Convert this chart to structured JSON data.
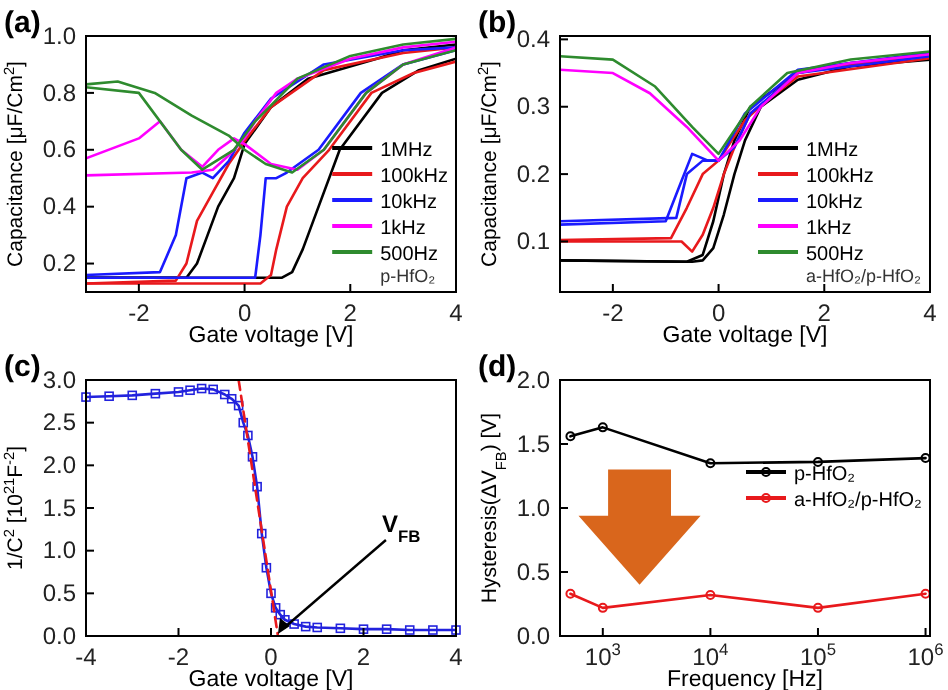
{
  "chart_data": [
    {
      "type": "line",
      "title": "(a)",
      "xlabel": "Gate voltage [V]",
      "ylabel": "Capacitance [μF/Cm$^{2}$]",
      "xlim": [
        -3,
        4
      ],
      "xticks": [
        -2,
        0,
        2,
        4
      ],
      "ylim": [
        0.1,
        1.0
      ],
      "yticks": [
        {
          "value": 0.2,
          "label": "0.2"
        },
        {
          "value": 0.4,
          "label": "0.4"
        },
        {
          "value": 0.6,
          "label": "0.6"
        },
        {
          "value": 0.8,
          "label": "0.8"
        },
        {
          "value": 1.0,
          "label": "1.0"
        }
      ],
      "legend": "bottom right",
      "annotations": [
        "p-HfO₂"
      ],
      "series": [
        {
          "name": "1MHz",
          "color": "#000000",
          "x": [
            -3,
            -1,
            0.7,
            0.9,
            1.1,
            1.4,
            1.8,
            2.6,
            3.3,
            4
          ],
          "values": [
            0.15,
            0.15,
            0.15,
            0.17,
            0.25,
            0.4,
            0.6,
            0.8,
            0.88,
            0.92
          ]
        },
        {
          "color": "#000000",
          "x": [
            -3,
            -1.1,
            -0.9,
            -0.7,
            -0.5,
            -0.2,
            0,
            0.5,
            1.2,
            2.5,
            3,
            4
          ],
          "values": [
            0.15,
            0.15,
            0.2,
            0.3,
            0.4,
            0.5,
            0.62,
            0.75,
            0.85,
            0.92,
            0.95,
            0.97
          ]
        },
        {
          "name": "100kHz",
          "color": "#e8191c",
          "x": [
            -3,
            0.3,
            0.5,
            0.6,
            0.8,
            1.1,
            1.6,
            2.4,
            3.2,
            4
          ],
          "values": [
            0.13,
            0.13,
            0.16,
            0.25,
            0.4,
            0.5,
            0.6,
            0.8,
            0.87,
            0.91
          ]
        },
        {
          "color": "#e8191c",
          "x": [
            -3,
            -1.3,
            -1.1,
            -0.9,
            -0.6,
            -0.3,
            0,
            0.5,
            1.5,
            3,
            4
          ],
          "values": [
            0.13,
            0.14,
            0.2,
            0.35,
            0.45,
            0.55,
            0.63,
            0.75,
            0.88,
            0.94,
            0.96
          ]
        },
        {
          "name": "10kHz",
          "color": "#1a1aff",
          "x": [
            -3,
            0.2,
            0.3,
            0.4,
            0.6,
            0.8,
            1.4,
            2.2,
            3,
            4
          ],
          "values": [
            0.15,
            0.15,
            0.3,
            0.5,
            0.5,
            0.52,
            0.6,
            0.8,
            0.9,
            0.95
          ]
        },
        {
          "color": "#1a1aff",
          "x": [
            -3,
            -1.6,
            -1.3,
            -1.1,
            -0.8,
            -0.6,
            -0.3,
            0,
            0.5,
            1.5,
            3,
            4
          ],
          "values": [
            0.16,
            0.17,
            0.3,
            0.5,
            0.52,
            0.5,
            0.56,
            0.66,
            0.78,
            0.9,
            0.95,
            0.96
          ]
        },
        {
          "name": "1kHz",
          "color": "#ff00ff",
          "x": [
            -3,
            -2,
            -1.6,
            -1.2,
            -0.8,
            -0.5,
            -0.2,
            0,
            0.5,
            1,
            1.5,
            2.3,
            3,
            4
          ],
          "values": [
            0.57,
            0.64,
            0.7,
            0.6,
            0.54,
            0.6,
            0.64,
            0.62,
            0.55,
            0.53,
            0.6,
            0.8,
            0.9,
            0.96
          ]
        },
        {
          "color": "#ff00ff",
          "x": [
            -3,
            -1,
            -0.6,
            -0.3,
            0,
            0.2,
            0.6,
            1,
            2,
            3,
            4
          ],
          "values": [
            0.51,
            0.52,
            0.53,
            0.58,
            0.64,
            0.7,
            0.8,
            0.85,
            0.92,
            0.96,
            0.98
          ]
        },
        {
          "name": "500Hz",
          "color": "#2e8b2e",
          "x": [
            -3,
            -2.4,
            -1.7,
            -1,
            -0.3,
            0,
            0.4,
            0.9,
            1.5,
            2.3,
            3,
            4
          ],
          "values": [
            0.83,
            0.84,
            0.8,
            0.72,
            0.65,
            0.6,
            0.55,
            0.52,
            0.6,
            0.8,
            0.9,
            0.95
          ]
        },
        {
          "color": "#2e8b2e",
          "x": [
            -3,
            -2,
            -1.2,
            -0.8,
            -0.2,
            0.2,
            1,
            2,
            3,
            4
          ],
          "values": [
            0.82,
            0.8,
            0.6,
            0.53,
            0.6,
            0.7,
            0.85,
            0.93,
            0.97,
            0.99
          ]
        }
      ]
    },
    {
      "type": "line",
      "title": "(b)",
      "xlabel": "Gate voltage [V]",
      "ylabel": "Capacitance [μF/Cm$^{2}$]",
      "xlim": [
        -3,
        4
      ],
      "xticks": [
        -2,
        0,
        2,
        4
      ],
      "ylim": [
        0.025,
        0.405
      ],
      "yticks": [
        0.1,
        0.2,
        0.3,
        0.4
      ],
      "legend": "bottom right",
      "annotations": [
        "a-HfO₂/p-HfO₂"
      ],
      "series": [
        {
          "name": "1MHz",
          "color": "#000000",
          "x": [
            -3,
            -0.5,
            -0.3,
            -0.1,
            0.1,
            0.3,
            0.5,
            0.8,
            1.5,
            2.5,
            4
          ],
          "values": [
            0.072,
            0.07,
            0.072,
            0.09,
            0.14,
            0.2,
            0.25,
            0.3,
            0.34,
            0.36,
            0.37
          ]
        },
        {
          "color": "#000000",
          "x": [
            -3,
            -0.6,
            -0.3,
            -0.1,
            0.1,
            0.3,
            0.6,
            1.5,
            2.5,
            4
          ],
          "values": [
            0.072,
            0.07,
            0.08,
            0.13,
            0.2,
            0.25,
            0.3,
            0.35,
            0.365,
            0.375
          ]
        },
        {
          "name": "100kHz",
          "color": "#e8191c",
          "x": [
            -3,
            -0.7,
            -0.5,
            -0.3,
            -0.1,
            0.1,
            0.3,
            0.6,
            1.5,
            4
          ],
          "values": [
            0.1,
            0.1,
            0.085,
            0.11,
            0.15,
            0.2,
            0.24,
            0.29,
            0.345,
            0.372
          ]
        },
        {
          "color": "#e8191c",
          "x": [
            -3,
            -0.9,
            -0.6,
            -0.3,
            0,
            0.5,
            1.5,
            4
          ],
          "values": [
            0.102,
            0.105,
            0.15,
            0.2,
            0.22,
            0.28,
            0.352,
            0.378
          ]
        },
        {
          "name": "10kHz",
          "color": "#1a1aff",
          "x": [
            -3,
            -1,
            -0.7,
            -0.5,
            -0.2,
            0,
            0.3,
            0.6,
            1.5,
            4
          ],
          "values": [
            0.125,
            0.13,
            0.19,
            0.23,
            0.22,
            0.22,
            0.24,
            0.29,
            0.35,
            0.375
          ]
        },
        {
          "color": "#1a1aff",
          "x": [
            -3,
            -0.8,
            -0.6,
            -0.3,
            0,
            0.5,
            1.5,
            4
          ],
          "values": [
            0.13,
            0.135,
            0.2,
            0.22,
            0.22,
            0.29,
            0.355,
            0.38
          ]
        },
        {
          "name": "1kHz",
          "color": "#ff00ff",
          "x": [
            -3,
            -2,
            -1.3,
            -0.6,
            0,
            0.4,
            0.8,
            1.5,
            2.5,
            4
          ],
          "values": [
            0.355,
            0.35,
            0.32,
            0.27,
            0.22,
            0.25,
            0.3,
            0.35,
            0.365,
            0.378
          ]
        },
        {
          "name": "500Hz",
          "color": "#2e8b2e",
          "x": [
            -3,
            -2,
            -1.2,
            -0.5,
            0,
            0.6,
            1.3,
            2.5,
            4
          ],
          "values": [
            0.375,
            0.37,
            0.33,
            0.27,
            0.23,
            0.3,
            0.35,
            0.37,
            0.382
          ]
        }
      ]
    },
    {
      "type": "line",
      "title": "(c)",
      "xlabel": "Gate voltage [V]",
      "ylabel": "1/C$^{2}$ [10$^{21}$F$^{-2}$]",
      "xlim": [
        -4,
        4
      ],
      "xticks": [
        -4,
        -2,
        0,
        2,
        4
      ],
      "ylim": [
        0,
        3
      ],
      "yticks": [
        {
          "value": 0,
          "label": "0.0"
        },
        {
          "value": 0.5,
          "label": "0.5"
        },
        {
          "value": 1,
          "label": "1.0"
        },
        {
          "value": 1.5,
          "label": "1.5"
        },
        {
          "value": 2,
          "label": "2.0"
        },
        {
          "value": 2.5,
          "label": "2.5"
        },
        {
          "value": 3,
          "label": "3.0"
        }
      ],
      "annotations": [
        {
          "text": "V$_{FB}$",
          "x": 0.15,
          "y": 0
        }
      ],
      "series": [
        {
          "color": "#2222dd",
          "marker": "square",
          "line_style": "solid",
          "x": [
            -4,
            -3.5,
            -3,
            -2.5,
            -2,
            -1.75,
            -1.5,
            -1.25,
            -1,
            -0.85,
            -0.7,
            -0.6,
            -0.5,
            -0.4,
            -0.3,
            -0.2,
            -0.1,
            0,
            0.1,
            0.2,
            0.3,
            0.5,
            0.75,
            1,
            1.5,
            2,
            2.5,
            3,
            3.5,
            4
          ],
          "values": [
            2.8,
            2.81,
            2.82,
            2.84,
            2.86,
            2.88,
            2.9,
            2.89,
            2.83,
            2.78,
            2.7,
            2.5,
            2.35,
            2.1,
            1.75,
            1.2,
            0.8,
            0.5,
            0.33,
            0.25,
            0.19,
            0.14,
            0.11,
            0.1,
            0.09,
            0.08,
            0.08,
            0.07,
            0.07,
            0.07
          ]
        },
        {
          "color": "#e8191c",
          "marker": "none",
          "line_style": "dashed",
          "x": [
            -0.7,
            0.15
          ],
          "values": [
            3.0,
            0
          ]
        }
      ]
    },
    {
      "type": "line",
      "title": "(d)",
      "xlabel": "Frequency [Hz]",
      "ylabel": "Hysteresis(ΔV$_{FB}$) [V]",
      "log": "x",
      "xlim": [
        400,
        1100000
      ],
      "xticks": [
        {
          "value": 1000,
          "label": "10$^{3}$"
        },
        {
          "value": 10000,
          "label": "10$^{4}$"
        },
        {
          "value": 100000,
          "label": "10$^{5}$"
        },
        {
          "value": 1000000,
          "label": "10$^{6}$"
        }
      ],
      "ylim": [
        0,
        2
      ],
      "yticks": [
        {
          "value": 0,
          "label": "0.0"
        },
        {
          "value": 0.5,
          "label": "0.5"
        },
        {
          "value": 1,
          "label": "1.0"
        },
        {
          "value": 1.5,
          "label": "1.5"
        },
        {
          "value": 2,
          "label": "2.0"
        }
      ],
      "legend": "right",
      "marker": "circle",
      "x": [
        500,
        1000,
        10000,
        100000,
        1000000
      ],
      "series": [
        {
          "name": "p-HfO₂",
          "color": "#000000",
          "values": [
            1.56,
            1.63,
            1.35,
            1.36,
            1.39
          ]
        },
        {
          "name": "a-HfO₂/p-HfO₂",
          "color": "#e8191c",
          "values": [
            0.33,
            0.22,
            0.32,
            0.22,
            0.33
          ]
        }
      ]
    }
  ]
}
